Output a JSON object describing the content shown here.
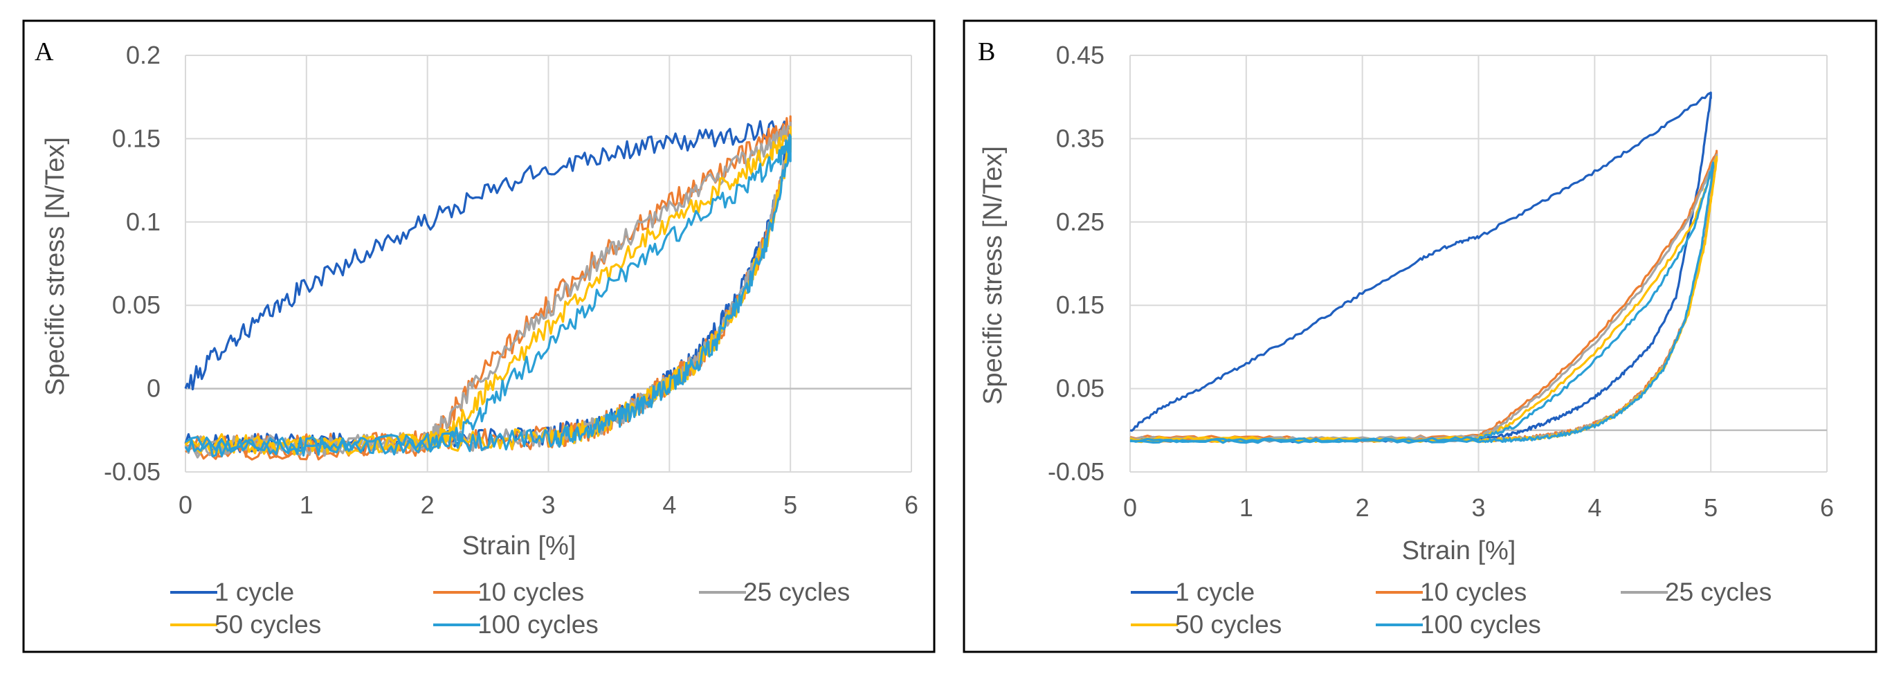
{
  "chart_data": [
    {
      "type": "line",
      "panel": "A",
      "xlabel": "Strain [%]",
      "ylabel": "Specific stress [N/Tex]",
      "xlim": [
        0,
        6
      ],
      "ylim": [
        -0.05,
        0.2
      ],
      "x_ticks": [
        0,
        1,
        2,
        3,
        4,
        5,
        6
      ],
      "y_ticks": [
        -0.05,
        0,
        0.05,
        0.1,
        0.15,
        0.2
      ],
      "x_tick_labels": [
        "0",
        "1",
        "2",
        "3",
        "4",
        "5",
        "6"
      ],
      "y_tick_labels": [
        "-0.05",
        "0",
        "0.05",
        "0.1",
        "0.15",
        "0.2"
      ],
      "grid": true,
      "legend_position": "bottom",
      "series": [
        {
          "name": "1 cycle",
          "color": "#1f5fbf",
          "noise": 0.006,
          "x": [
            0,
            0.3,
            0.6,
            1.0,
            1.5,
            2.0,
            2.5,
            3.0,
            3.5,
            4.0,
            4.5,
            5.0,
            5.0,
            4.8,
            4.6,
            4.4,
            4.2,
            4.0,
            3.8,
            3.6,
            3.4,
            3.2,
            3.0,
            2.5,
            2.0,
            1.5,
            1.0,
            0.5,
            0.0
          ],
          "y": [
            0,
            0.025,
            0.04,
            0.062,
            0.082,
            0.1,
            0.118,
            0.132,
            0.142,
            0.147,
            0.152,
            0.158,
            0.15,
            0.092,
            0.06,
            0.036,
            0.018,
            0.006,
            -0.005,
            -0.015,
            -0.022,
            -0.025,
            -0.028,
            -0.03,
            -0.031,
            -0.032,
            -0.033,
            -0.033,
            -0.033
          ]
        },
        {
          "name": "10 cycles",
          "color": "#ed7d31",
          "noise": 0.007,
          "x": [
            0,
            1.0,
            2.0,
            2.1,
            2.4,
            2.8,
            3.2,
            3.6,
            4.0,
            4.4,
            4.8,
            5.0,
            5.0,
            4.8,
            4.6,
            4.4,
            4.2,
            4.0,
            3.8,
            3.6,
            3.4,
            3.2,
            3.0,
            2.5,
            2.0,
            1.5,
            1.0,
            0.5,
            0.0
          ],
          "y": [
            -0.038,
            -0.036,
            -0.033,
            -0.025,
            0.005,
            0.035,
            0.065,
            0.09,
            0.11,
            0.13,
            0.148,
            0.157,
            0.15,
            0.09,
            0.056,
            0.032,
            0.015,
            0.004,
            -0.006,
            -0.016,
            -0.023,
            -0.027,
            -0.029,
            -0.031,
            -0.032,
            -0.033,
            -0.034,
            -0.034,
            -0.035
          ]
        },
        {
          "name": "25 cycles",
          "color": "#a5a5a5",
          "noise": 0.006,
          "x": [
            0,
            1.0,
            2.0,
            2.1,
            2.4,
            2.8,
            3.2,
            3.6,
            4.0,
            4.4,
            4.8,
            5.0,
            5.0,
            4.8,
            4.6,
            4.4,
            4.2,
            4.0,
            3.8,
            3.6,
            3.4,
            3.2,
            3.0,
            2.5,
            2.0,
            1.5,
            1.0,
            0.5,
            0.0
          ],
          "y": [
            -0.036,
            -0.035,
            -0.032,
            -0.024,
            0.004,
            0.033,
            0.062,
            0.088,
            0.108,
            0.127,
            0.145,
            0.155,
            0.149,
            0.09,
            0.056,
            0.032,
            0.015,
            0.004,
            -0.006,
            -0.016,
            -0.023,
            -0.027,
            -0.029,
            -0.031,
            -0.032,
            -0.033,
            -0.034,
            -0.034,
            -0.034
          ]
        },
        {
          "name": "50 cycles",
          "color": "#ffc000",
          "noise": 0.006,
          "x": [
            0,
            1.0,
            2.0,
            2.2,
            2.5,
            2.9,
            3.3,
            3.7,
            4.1,
            4.5,
            4.8,
            5.0,
            5.0,
            4.8,
            4.6,
            4.4,
            4.2,
            4.0,
            3.8,
            3.6,
            3.4,
            3.2,
            3.0,
            2.5,
            2.0,
            1.5,
            1.0,
            0.5,
            0.0
          ],
          "y": [
            -0.033,
            -0.034,
            -0.033,
            -0.026,
            0.0,
            0.03,
            0.058,
            0.084,
            0.104,
            0.124,
            0.14,
            0.152,
            0.146,
            0.088,
            0.055,
            0.031,
            0.014,
            0.003,
            -0.007,
            -0.016,
            -0.023,
            -0.027,
            -0.029,
            -0.031,
            -0.032,
            -0.033,
            -0.034,
            -0.034,
            -0.034
          ]
        },
        {
          "name": "100 cycles",
          "color": "#2a9fd6",
          "noise": 0.006,
          "x": [
            0,
            1.0,
            2.0,
            2.3,
            2.6,
            3.0,
            3.4,
            3.8,
            4.2,
            4.6,
            4.9,
            5.0,
            5.0,
            4.8,
            4.6,
            4.4,
            4.2,
            4.0,
            3.8,
            3.6,
            3.4,
            3.2,
            3.0,
            2.5,
            2.0,
            1.5,
            1.0,
            0.5,
            0.0
          ],
          "y": [
            -0.032,
            -0.034,
            -0.033,
            -0.026,
            -0.002,
            0.026,
            0.054,
            0.08,
            0.1,
            0.12,
            0.138,
            0.147,
            0.142,
            0.086,
            0.054,
            0.03,
            0.013,
            0.002,
            -0.008,
            -0.017,
            -0.024,
            -0.028,
            -0.03,
            -0.032,
            -0.033,
            -0.034,
            -0.035,
            -0.035,
            -0.035
          ]
        }
      ]
    },
    {
      "type": "line",
      "panel": "B",
      "xlabel": "Strain [%]",
      "ylabel": "Specific stress  [N/Tex]",
      "xlim": [
        0,
        6
      ],
      "ylim": [
        -0.05,
        0.45
      ],
      "x_ticks": [
        0,
        1,
        2,
        3,
        4,
        5,
        6
      ],
      "y_ticks": [
        -0.05,
        0.05,
        0.15,
        0.25,
        0.35,
        0.45
      ],
      "x_tick_labels": [
        "0",
        "1",
        "2",
        "3",
        "4",
        "5",
        "6"
      ],
      "y_tick_labels": [
        "-0.05",
        "0.05",
        "0.15",
        "0.25",
        "0.35",
        "0.45"
      ],
      "baseline": 0,
      "grid": true,
      "legend_position": "bottom",
      "series": [
        {
          "name": "1 cycle",
          "color": "#1f5fbf",
          "noise": 0.002,
          "x": [
            0,
            0.3,
            0.6,
            1.0,
            1.5,
            2.0,
            2.5,
            2.8,
            3.0,
            3.5,
            4.0,
            4.5,
            5.0,
            5.0,
            4.9,
            4.7,
            4.5,
            4.3,
            4.1,
            3.9,
            3.7,
            3.5,
            3.3,
            3.1,
            3.0,
            2.5,
            2.0,
            1.0,
            0.0
          ],
          "y": [
            0.0,
            0.03,
            0.05,
            0.08,
            0.12,
            0.165,
            0.205,
            0.225,
            0.232,
            0.27,
            0.31,
            0.355,
            0.405,
            0.4,
            0.3,
            0.16,
            0.105,
            0.075,
            0.05,
            0.03,
            0.016,
            0.005,
            -0.004,
            -0.009,
            -0.011,
            -0.012,
            -0.012,
            -0.012,
            -0.012
          ]
        },
        {
          "name": "10 cycles",
          "color": "#ed7d31",
          "noise": 0.002,
          "x": [
            0,
            1.0,
            2.0,
            3.0,
            3.2,
            3.6,
            4.0,
            4.4,
            4.8,
            5.05,
            5.05,
            4.95,
            4.8,
            4.6,
            4.4,
            4.2,
            4.0,
            3.8,
            3.6,
            3.4,
            3.2,
            3.0,
            2.0,
            1.0,
            0.0
          ],
          "y": [
            -0.008,
            -0.009,
            -0.01,
            -0.006,
            0.01,
            0.055,
            0.11,
            0.175,
            0.255,
            0.335,
            0.33,
            0.23,
            0.14,
            0.08,
            0.045,
            0.022,
            0.008,
            -0.001,
            -0.006,
            -0.009,
            -0.011,
            -0.012,
            -0.012,
            -0.012,
            -0.012
          ]
        },
        {
          "name": "25 cycles",
          "color": "#a5a5a5",
          "noise": 0.002,
          "x": [
            0,
            1.0,
            2.0,
            3.0,
            3.2,
            3.6,
            4.0,
            4.4,
            4.8,
            5.05,
            5.05,
            4.95,
            4.8,
            4.6,
            4.4,
            4.2,
            4.0,
            3.8,
            3.6,
            3.4,
            3.2,
            3.0,
            2.0,
            1.0,
            0.0
          ],
          "y": [
            -0.009,
            -0.01,
            -0.01,
            -0.008,
            0.006,
            0.05,
            0.104,
            0.169,
            0.25,
            0.33,
            0.326,
            0.226,
            0.138,
            0.078,
            0.043,
            0.021,
            0.007,
            -0.002,
            -0.007,
            -0.01,
            -0.011,
            -0.012,
            -0.012,
            -0.012,
            -0.012
          ]
        },
        {
          "name": "50 cycles",
          "color": "#ffc000",
          "noise": 0.002,
          "x": [
            0,
            1.0,
            2.0,
            3.0,
            3.25,
            3.65,
            4.05,
            4.45,
            4.85,
            5.05,
            5.05,
            4.95,
            4.8,
            4.6,
            4.4,
            4.2,
            4.0,
            3.8,
            3.6,
            3.4,
            3.2,
            3.0,
            2.0,
            1.0,
            0.0
          ],
          "y": [
            -0.01,
            -0.01,
            -0.011,
            -0.009,
            0.005,
            0.048,
            0.1,
            0.165,
            0.248,
            0.328,
            0.324,
            0.224,
            0.136,
            0.076,
            0.042,
            0.02,
            0.006,
            -0.003,
            -0.008,
            -0.01,
            -0.011,
            -0.012,
            -0.012,
            -0.012,
            -0.012
          ]
        },
        {
          "name": "100 cycles",
          "color": "#2a9fd6",
          "noise": 0.002,
          "x": [
            0,
            1.0,
            2.0,
            3.0,
            3.3,
            3.7,
            4.1,
            4.5,
            4.85,
            5.02,
            5.02,
            4.92,
            4.78,
            4.6,
            4.4,
            4.2,
            4.0,
            3.8,
            3.6,
            3.4,
            3.2,
            3.0,
            2.0,
            1.0,
            0.0
          ],
          "y": [
            -0.012,
            -0.012,
            -0.012,
            -0.01,
            0.004,
            0.045,
            0.097,
            0.16,
            0.24,
            0.32,
            0.316,
            0.22,
            0.133,
            0.075,
            0.041,
            0.019,
            0.005,
            -0.003,
            -0.008,
            -0.011,
            -0.012,
            -0.013,
            -0.013,
            -0.013,
            -0.013
          ]
        }
      ]
    }
  ]
}
